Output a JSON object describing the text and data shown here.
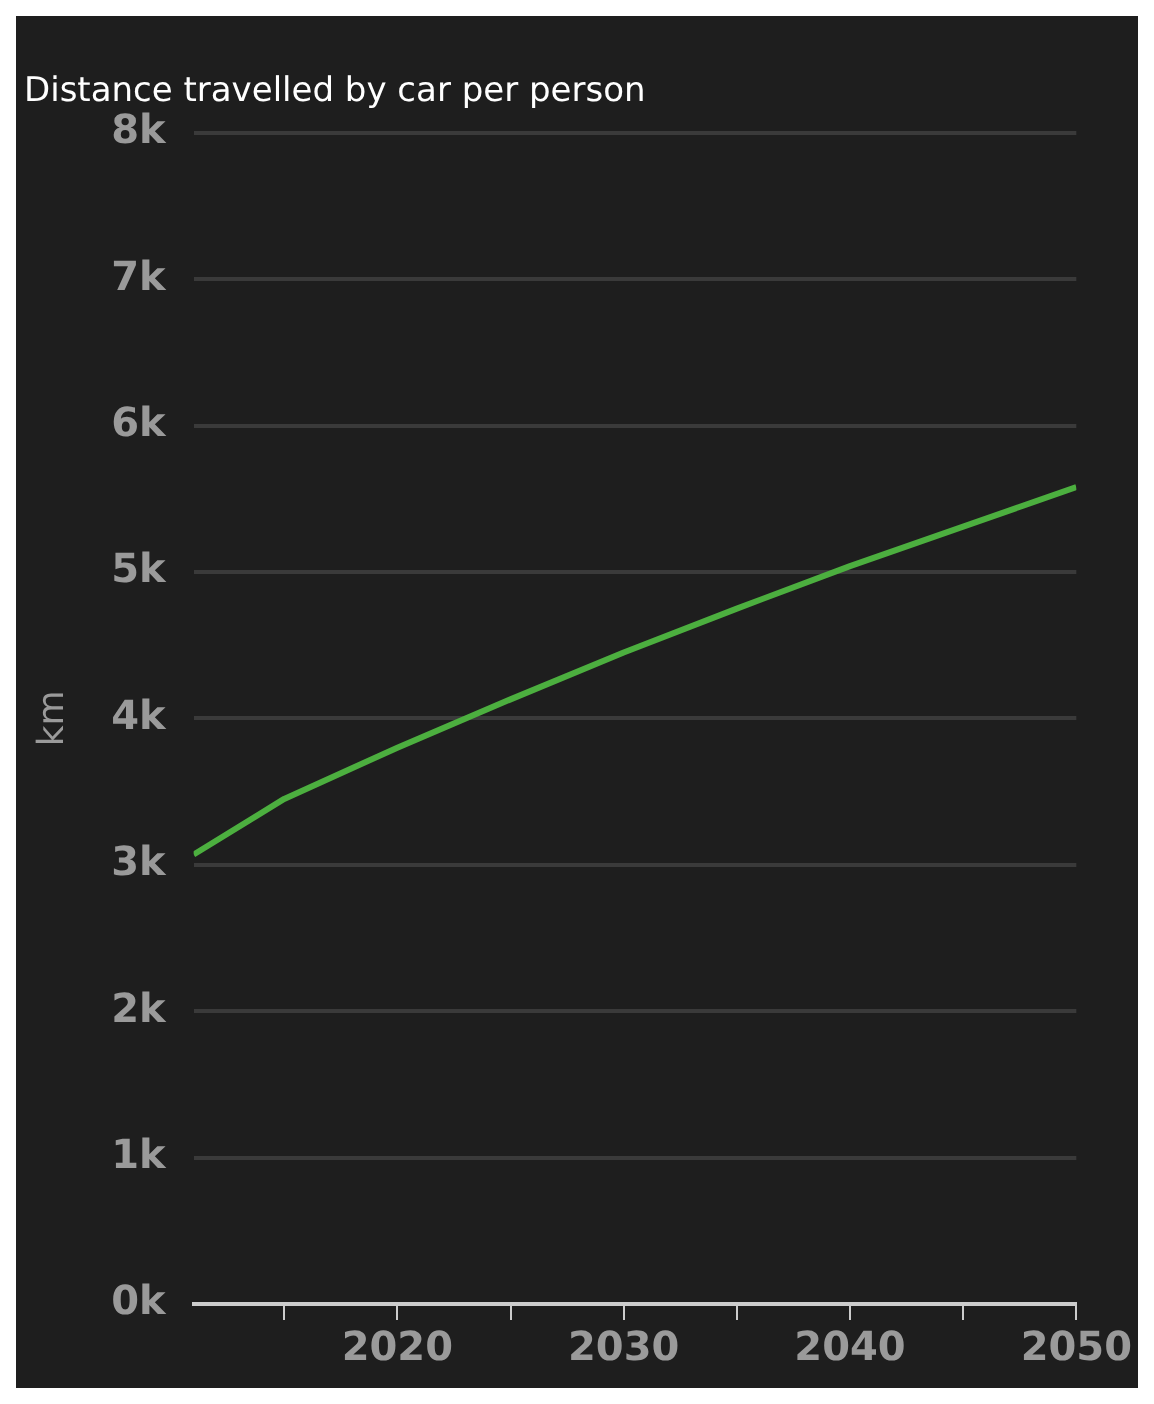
{
  "chart_data": {
    "type": "line",
    "title": "Distance travelled by car per person",
    "ylabel": "km",
    "x": [
      2011,
      2015,
      2020,
      2025,
      2030,
      2035,
      2040,
      2045,
      2050
    ],
    "series": [
      {
        "color": "#4caf3f",
        "values": [
          3070,
          3450,
          3800,
          4130,
          4450,
          4750,
          5040,
          5310,
          5580
        ]
      }
    ],
    "xlim": [
      2011,
      2050
    ],
    "xticks": [
      {
        "value": 2015,
        "label": null
      },
      2020,
      {
        "value": 2025,
        "label": null
      },
      2030,
      {
        "value": 2035,
        "label": null
      },
      2040,
      {
        "value": 2045,
        "label": null
      },
      2050
    ],
    "ylim": [
      0,
      8000
    ],
    "yticks": [
      {
        "value": 0,
        "label": "0k"
      },
      {
        "value": 1000,
        "label": "1k"
      },
      {
        "value": 2000,
        "label": "2k"
      },
      {
        "value": 3000,
        "label": "3k"
      },
      {
        "value": 4000,
        "label": "4k"
      },
      {
        "value": 5000,
        "label": "5k"
      },
      {
        "value": 6000,
        "label": "6k"
      },
      {
        "value": 7000,
        "label": "7k"
      },
      {
        "value": 8000,
        "label": "8k"
      }
    ],
    "grid": "y",
    "legend": false,
    "marker": "none",
    "line_style": "solid"
  }
}
